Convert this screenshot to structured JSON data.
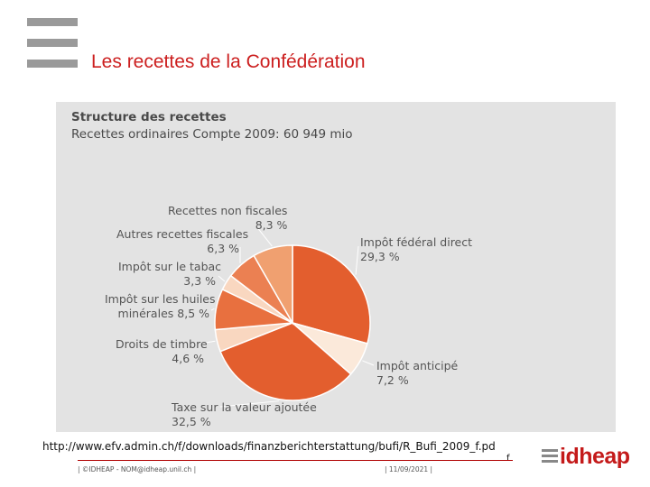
{
  "slide": {
    "title": "Les recettes de la Confédération"
  },
  "chart_data": {
    "type": "pie",
    "title": "Structure des recettes",
    "subtitle": "Recettes ordinaires Compte 2009: 60 949 mio",
    "slices": [
      {
        "key": "impot_federal_direct",
        "label": "Impôt fédéral direct",
        "value": 29.3,
        "value_label": "29,3 %",
        "color": "#e35e2e"
      },
      {
        "key": "impot_anticipe",
        "label": "Impôt anticipé",
        "value": 7.2,
        "value_label": "7,2 %",
        "color": "#fbe9da"
      },
      {
        "key": "tva",
        "label": "Taxe sur la valeur ajoutée",
        "value": 32.5,
        "value_label": "32,5 %",
        "color": "#e35e2e"
      },
      {
        "key": "droits_timbre",
        "label": "Droits de timbre",
        "value": 4.6,
        "value_label": "4,6 %",
        "color": "#f9d7c0"
      },
      {
        "key": "impot_huiles",
        "label": "Impôt sur les huiles minérales",
        "label_line1": "Impôt sur les huiles",
        "label_line2": "minérales",
        "value": 8.5,
        "value_label": "8,5 %",
        "color": "#e8703f"
      },
      {
        "key": "impot_tabac",
        "label": "Impôt sur le tabac",
        "value": 3.3,
        "value_label": "3,3 %",
        "color": "#f9d7c0"
      },
      {
        "key": "autres_fiscales",
        "label": "Autres recettes fiscales",
        "value": 6.3,
        "value_label": "6,3 %",
        "color": "#eb8052"
      },
      {
        "key": "non_fiscales",
        "label": "Recettes non fiscales",
        "value": 8.3,
        "value_label": "8,3 %",
        "color": "#f0a070"
      }
    ]
  },
  "source": {
    "url": "http://www.efv.admin.ch/f/downloads/finanzberichterstattung/bufi/R_Bufi_2009_f.pd",
    "url_tail": "f"
  },
  "footer": {
    "left": "| ©IDHEAP - NOM@idheap.unil.ch |",
    "date": "| 11/09/2021 |"
  },
  "logo": {
    "text": "idheap"
  }
}
